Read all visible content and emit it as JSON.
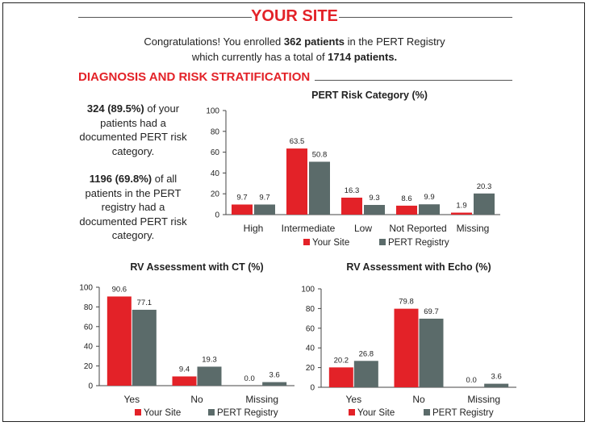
{
  "header": {
    "title": "YOUR SITE",
    "intro_line1_pre": "Congratulations! You enrolled ",
    "intro_line1_bold": "362 patients",
    "intro_line1_post": " in the PERT Registry",
    "intro_line2_pre": "which currently has a total of ",
    "intro_line2_bold": "1714 patients."
  },
  "section": {
    "title": "DIAGNOSIS AND RISK STRATIFICATION"
  },
  "sidebar": {
    "stat1_bold": "324 (89.5%)",
    "stat1_text": " of your patients had a documented PERT risk category.",
    "stat2_bold": "1196 (69.8%)",
    "stat2_text": " of all patients in the PERT registry had a documented PERT risk category."
  },
  "colors": {
    "your_site": "#e32228",
    "pert_registry": "#5b6b6a",
    "accent": "#e32228"
  },
  "chart_data": [
    {
      "type": "bar",
      "title": "PERT Risk Category (%)",
      "categories": [
        "High",
        "Intermediate",
        "Low",
        "Not Reported",
        "Missing"
      ],
      "series": [
        {
          "name": "Your Site",
          "values": [
            9.7,
            63.5,
            16.3,
            8.6,
            1.9
          ]
        },
        {
          "name": "PERT Registry",
          "values": [
            9.7,
            50.8,
            9.3,
            9.9,
            20.3
          ]
        }
      ],
      "ylim": [
        0,
        100
      ],
      "yticks": [
        0,
        20,
        40,
        60,
        80,
        100
      ],
      "legend": "bottom"
    },
    {
      "type": "bar",
      "title": "RV Assessment with CT (%)",
      "categories": [
        "Yes",
        "No",
        "Missing"
      ],
      "series": [
        {
          "name": "Your Site",
          "values": [
            90.6,
            9.4,
            0.0
          ]
        },
        {
          "name": "PERT Registry",
          "values": [
            77.1,
            19.3,
            3.6
          ]
        }
      ],
      "ylim": [
        0,
        100
      ],
      "yticks": [
        0,
        20,
        40,
        60,
        80,
        100
      ],
      "legend": "bottom"
    },
    {
      "type": "bar",
      "title": "RV Assessment with Echo (%)",
      "categories": [
        "Yes",
        "No",
        "Missing"
      ],
      "series": [
        {
          "name": "Your Site",
          "values": [
            20.2,
            79.8,
            0.0
          ]
        },
        {
          "name": "PERT Registry",
          "values": [
            26.8,
            69.7,
            3.6
          ]
        }
      ],
      "ylim": [
        0,
        100
      ],
      "yticks": [
        0,
        20,
        40,
        60,
        80,
        100
      ],
      "legend": "bottom"
    }
  ]
}
